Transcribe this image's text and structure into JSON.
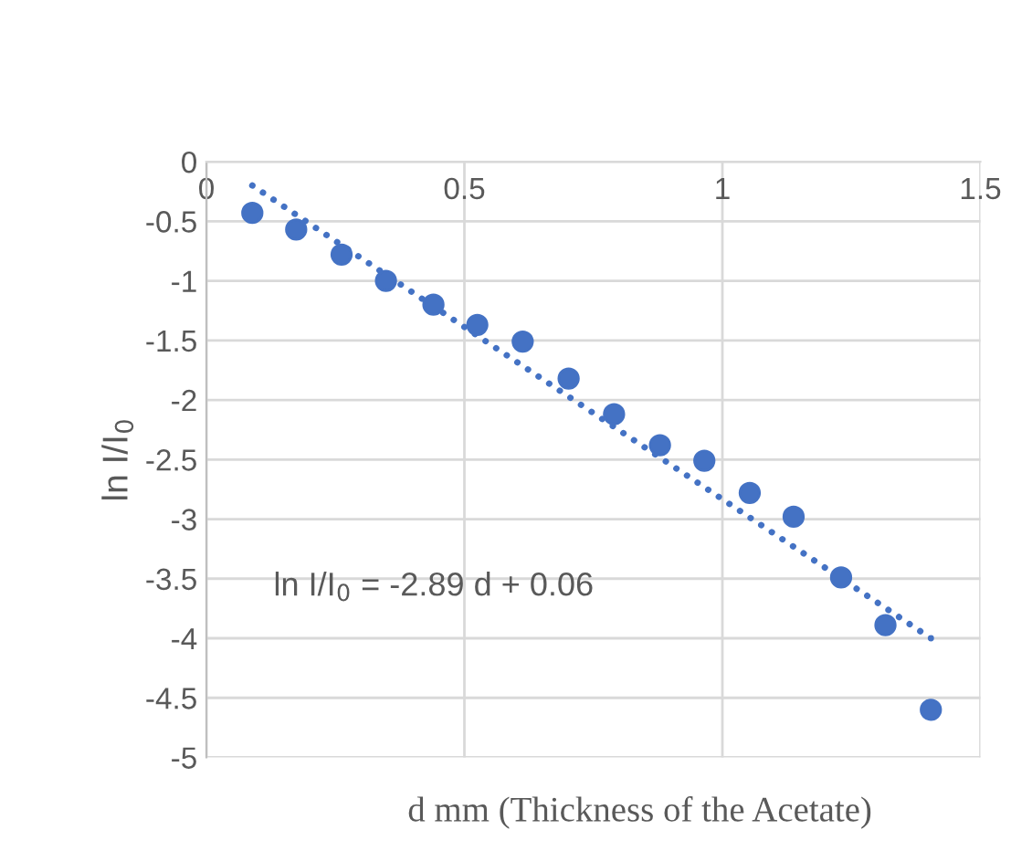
{
  "chart_data": {
    "type": "scatter",
    "xlabel": "d mm (Thickness of the Acetate)",
    "ylabel": "ln I/I$_{0}$",
    "annotations": [
      "ln I/I$_{0}$ = -2.89 d + 0.06"
    ],
    "series": [
      {
        "color": "#4472c4",
        "marker": "circle",
        "x": [
          0.089,
          0.174,
          0.262,
          0.348,
          0.44,
          0.525,
          0.613,
          0.702,
          0.79,
          0.879,
          0.965,
          1.053,
          1.138,
          1.23,
          1.316,
          1.404
        ],
        "values": [
          -0.43,
          -0.57,
          -0.78,
          -1.0,
          -1.2,
          -1.37,
          -1.51,
          -1.82,
          -2.12,
          -2.38,
          -2.51,
          -2.78,
          -2.98,
          -3.49,
          -3.89,
          -4.6
        ]
      },
      {
        "type": "line",
        "color": "#4472c4",
        "line_style": "dotted",
        "marker": "none",
        "x": [
          0.089,
          1.404
        ],
        "values": [
          -0.2,
          -4.0
        ]
      }
    ],
    "xlim": [
      0,
      1.5
    ],
    "xticks": [
      0,
      0.5,
      1,
      1.5
    ],
    "ylim": [
      -5,
      0
    ],
    "yticks": [
      0,
      -0.5,
      -1,
      -1.5,
      -2,
      -2.5,
      -3,
      -3.5,
      -4,
      -4.5,
      -5
    ],
    "grid": true
  }
}
